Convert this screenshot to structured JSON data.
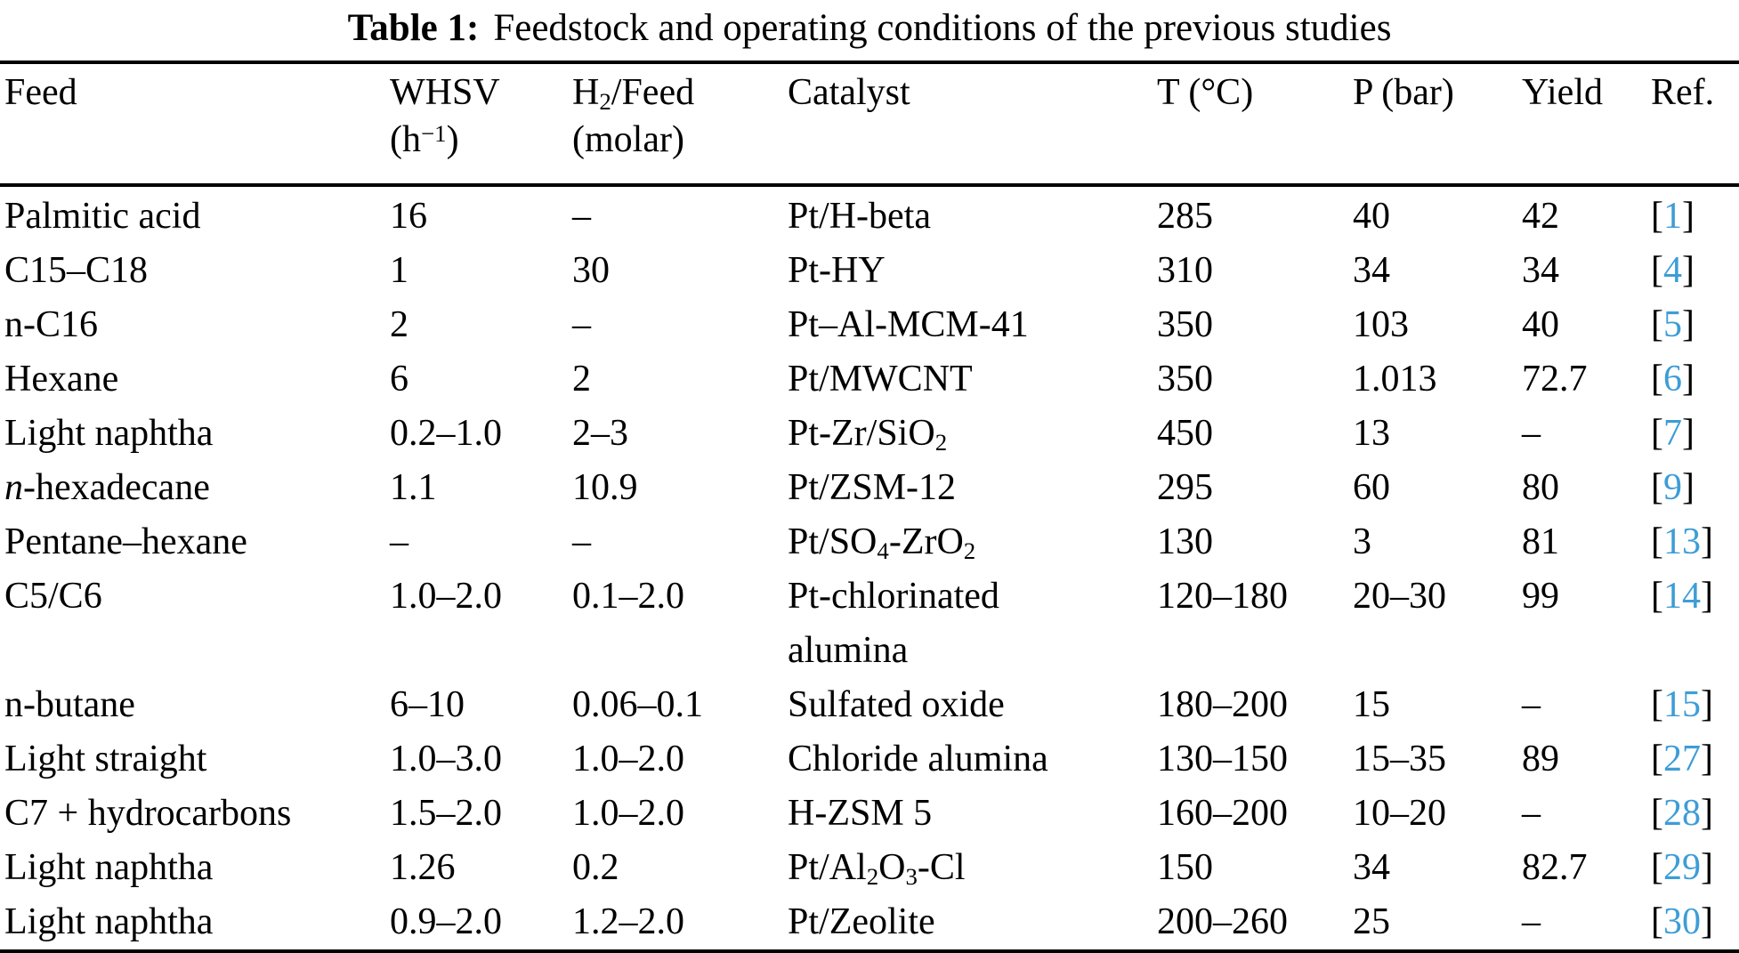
{
  "title": {
    "label": "Table 1:",
    "text": "Feedstock and operating conditions of the previous studies"
  },
  "colors": {
    "ref_link": "#3D9DD6",
    "text": "#000000",
    "rule": "#000000"
  },
  "table": {
    "columns": [
      {
        "id": "feed",
        "name": "column-header-feed",
        "header": [
          {
            "text": "Feed"
          }
        ]
      },
      {
        "id": "whsv",
        "name": "column-header-whsv",
        "header": [
          {
            "text": "WHSV"
          },
          {
            "break": true
          },
          {
            "text": "(h"
          },
          {
            "text": "−1",
            "style": "sup"
          },
          {
            "text": ")"
          }
        ]
      },
      {
        "id": "h2feed",
        "name": "column-header-h2-feed",
        "header": [
          {
            "text": "H"
          },
          {
            "text": "2",
            "style": "sub"
          },
          {
            "text": "/Feed"
          },
          {
            "break": true
          },
          {
            "text": "(molar)"
          }
        ]
      },
      {
        "id": "catalyst",
        "name": "column-header-catalyst",
        "header": [
          {
            "text": "Catalyst"
          }
        ]
      },
      {
        "id": "temp",
        "name": "column-header-temperature",
        "header": [
          {
            "text": "T (°C)"
          }
        ]
      },
      {
        "id": "pressure",
        "name": "column-header-pressure",
        "header": [
          {
            "text": "P (bar)"
          }
        ]
      },
      {
        "id": "yield",
        "name": "column-header-yield",
        "header": [
          {
            "text": "Yield"
          }
        ]
      },
      {
        "id": "ref",
        "name": "column-header-reference",
        "header": [
          {
            "text": "Ref."
          }
        ]
      }
    ],
    "rows": [
      {
        "cells": {
          "feed": [
            {
              "text": "Palmitic acid"
            }
          ],
          "whsv": [
            {
              "text": "16"
            }
          ],
          "h2feed": [
            {
              "text": "–"
            }
          ],
          "catalyst": [
            {
              "text": "Pt/H-beta"
            }
          ],
          "temp": [
            {
              "text": "285"
            }
          ],
          "pressure": [
            {
              "text": "40"
            }
          ],
          "yield": [
            {
              "text": "42"
            }
          ],
          "ref": [
            {
              "text": "["
            },
            {
              "text": "1",
              "style": "ref"
            },
            {
              "text": "]"
            }
          ]
        }
      },
      {
        "cells": {
          "feed": [
            {
              "text": "C15–C18"
            }
          ],
          "whsv": [
            {
              "text": "1"
            }
          ],
          "h2feed": [
            {
              "text": "30"
            }
          ],
          "catalyst": [
            {
              "text": "Pt-HY"
            }
          ],
          "temp": [
            {
              "text": "310"
            }
          ],
          "pressure": [
            {
              "text": "34"
            }
          ],
          "yield": [
            {
              "text": "34"
            }
          ],
          "ref": [
            {
              "text": "["
            },
            {
              "text": "4",
              "style": "ref"
            },
            {
              "text": "]"
            }
          ]
        }
      },
      {
        "cells": {
          "feed": [
            {
              "text": "n-C16"
            }
          ],
          "whsv": [
            {
              "text": "2"
            }
          ],
          "h2feed": [
            {
              "text": "–"
            }
          ],
          "catalyst": [
            {
              "text": "Pt–Al-MCM-41"
            }
          ],
          "temp": [
            {
              "text": "350"
            }
          ],
          "pressure": [
            {
              "text": "103"
            }
          ],
          "yield": [
            {
              "text": "40"
            }
          ],
          "ref": [
            {
              "text": "["
            },
            {
              "text": "5",
              "style": "ref"
            },
            {
              "text": "]"
            }
          ]
        }
      },
      {
        "cells": {
          "feed": [
            {
              "text": "Hexane"
            }
          ],
          "whsv": [
            {
              "text": "6"
            }
          ],
          "h2feed": [
            {
              "text": "2"
            }
          ],
          "catalyst": [
            {
              "text": "Pt/MWCNT"
            }
          ],
          "temp": [
            {
              "text": "350"
            }
          ],
          "pressure": [
            {
              "text": "1.013"
            }
          ],
          "yield": [
            {
              "text": "72.7"
            }
          ],
          "ref": [
            {
              "text": "["
            },
            {
              "text": "6",
              "style": "ref"
            },
            {
              "text": "]"
            }
          ]
        }
      },
      {
        "cells": {
          "feed": [
            {
              "text": "Light naphtha"
            }
          ],
          "whsv": [
            {
              "text": "0.2–1.0"
            }
          ],
          "h2feed": [
            {
              "text": "2–3"
            }
          ],
          "catalyst": [
            {
              "text": "Pt-Zr/SiO"
            },
            {
              "text": "2",
              "style": "sub"
            }
          ],
          "temp": [
            {
              "text": "450"
            }
          ],
          "pressure": [
            {
              "text": "13"
            }
          ],
          "yield": [
            {
              "text": "–"
            }
          ],
          "ref": [
            {
              "text": "["
            },
            {
              "text": "7",
              "style": "ref"
            },
            {
              "text": "]"
            }
          ]
        }
      },
      {
        "cells": {
          "feed": [
            {
              "text": "n",
              "style": "italic"
            },
            {
              "text": "-hexadecane"
            }
          ],
          "whsv": [
            {
              "text": "1.1"
            }
          ],
          "h2feed": [
            {
              "text": "10.9"
            }
          ],
          "catalyst": [
            {
              "text": "Pt/ZSM-12"
            }
          ],
          "temp": [
            {
              "text": "295"
            }
          ],
          "pressure": [
            {
              "text": "60"
            }
          ],
          "yield": [
            {
              "text": "80"
            }
          ],
          "ref": [
            {
              "text": "["
            },
            {
              "text": "9",
              "style": "ref"
            },
            {
              "text": "]"
            }
          ]
        }
      },
      {
        "cells": {
          "feed": [
            {
              "text": "Pentane–hexane"
            }
          ],
          "whsv": [
            {
              "text": "–"
            }
          ],
          "h2feed": [
            {
              "text": "–"
            }
          ],
          "catalyst": [
            {
              "text": "Pt/SO"
            },
            {
              "text": "4",
              "style": "sub"
            },
            {
              "text": "-ZrO"
            },
            {
              "text": "2",
              "style": "sub"
            }
          ],
          "temp": [
            {
              "text": "130"
            }
          ],
          "pressure": [
            {
              "text": "3"
            }
          ],
          "yield": [
            {
              "text": "81"
            }
          ],
          "ref": [
            {
              "text": "["
            },
            {
              "text": "13",
              "style": "ref"
            },
            {
              "text": "]"
            }
          ]
        }
      },
      {
        "cells": {
          "feed": [
            {
              "text": "C5/C6"
            }
          ],
          "whsv": [
            {
              "text": "1.0–2.0"
            }
          ],
          "h2feed": [
            {
              "text": "0.1–2.0"
            }
          ],
          "catalyst": [
            {
              "text": "Pt-chlorinated"
            },
            {
              "break": true
            },
            {
              "text": "alumina"
            }
          ],
          "temp": [
            {
              "text": "120–180"
            }
          ],
          "pressure": [
            {
              "text": "20–30"
            }
          ],
          "yield": [
            {
              "text": "99"
            }
          ],
          "ref": [
            {
              "text": "["
            },
            {
              "text": "14",
              "style": "ref"
            },
            {
              "text": "]"
            }
          ]
        }
      },
      {
        "cells": {
          "feed": [
            {
              "text": "n-butane"
            }
          ],
          "whsv": [
            {
              "text": "6–10"
            }
          ],
          "h2feed": [
            {
              "text": "0.06–0.1"
            }
          ],
          "catalyst": [
            {
              "text": "Sulfated oxide"
            }
          ],
          "temp": [
            {
              "text": "180–200"
            }
          ],
          "pressure": [
            {
              "text": "15"
            }
          ],
          "yield": [
            {
              "text": "–"
            }
          ],
          "ref": [
            {
              "text": "["
            },
            {
              "text": "15",
              "style": "ref"
            },
            {
              "text": "]"
            }
          ]
        }
      },
      {
        "cells": {
          "feed": [
            {
              "text": "Light straight"
            }
          ],
          "whsv": [
            {
              "text": "1.0–3.0"
            }
          ],
          "h2feed": [
            {
              "text": "1.0–2.0"
            }
          ],
          "catalyst": [
            {
              "text": "Chloride alumina"
            }
          ],
          "temp": [
            {
              "text": "130–150"
            }
          ],
          "pressure": [
            {
              "text": "15–35"
            }
          ],
          "yield": [
            {
              "text": "89"
            }
          ],
          "ref": [
            {
              "text": "["
            },
            {
              "text": "27",
              "style": "ref"
            },
            {
              "text": "]"
            }
          ]
        }
      },
      {
        "cells": {
          "feed": [
            {
              "text": "C7 + hydrocarbons"
            }
          ],
          "whsv": [
            {
              "text": "1.5–2.0"
            }
          ],
          "h2feed": [
            {
              "text": "1.0–2.0"
            }
          ],
          "catalyst": [
            {
              "text": "H-ZSM 5"
            }
          ],
          "temp": [
            {
              "text": "160–200"
            }
          ],
          "pressure": [
            {
              "text": "10–20"
            }
          ],
          "yield": [
            {
              "text": "–"
            }
          ],
          "ref": [
            {
              "text": "["
            },
            {
              "text": "28",
              "style": "ref"
            },
            {
              "text": "]"
            }
          ]
        }
      },
      {
        "cells": {
          "feed": [
            {
              "text": "Light naphtha"
            }
          ],
          "whsv": [
            {
              "text": "1.26"
            }
          ],
          "h2feed": [
            {
              "text": "0.2"
            }
          ],
          "catalyst": [
            {
              "text": "Pt/Al"
            },
            {
              "text": "2",
              "style": "sub"
            },
            {
              "text": "O"
            },
            {
              "text": "3",
              "style": "sub"
            },
            {
              "text": "-Cl"
            }
          ],
          "temp": [
            {
              "text": "150"
            }
          ],
          "pressure": [
            {
              "text": "34"
            }
          ],
          "yield": [
            {
              "text": "82.7"
            }
          ],
          "ref": [
            {
              "text": "["
            },
            {
              "text": "29",
              "style": "ref"
            },
            {
              "text": "]"
            }
          ]
        }
      },
      {
        "cells": {
          "feed": [
            {
              "text": "Light naphtha"
            }
          ],
          "whsv": [
            {
              "text": "0.9–2.0"
            }
          ],
          "h2feed": [
            {
              "text": "1.2–2.0"
            }
          ],
          "catalyst": [
            {
              "text": "Pt/Zeolite"
            }
          ],
          "temp": [
            {
              "text": "200–260"
            }
          ],
          "pressure": [
            {
              "text": "25"
            }
          ],
          "yield": [
            {
              "text": "–"
            }
          ],
          "ref": [
            {
              "text": "["
            },
            {
              "text": "30",
              "style": "ref"
            },
            {
              "text": "]"
            }
          ]
        }
      }
    ]
  }
}
